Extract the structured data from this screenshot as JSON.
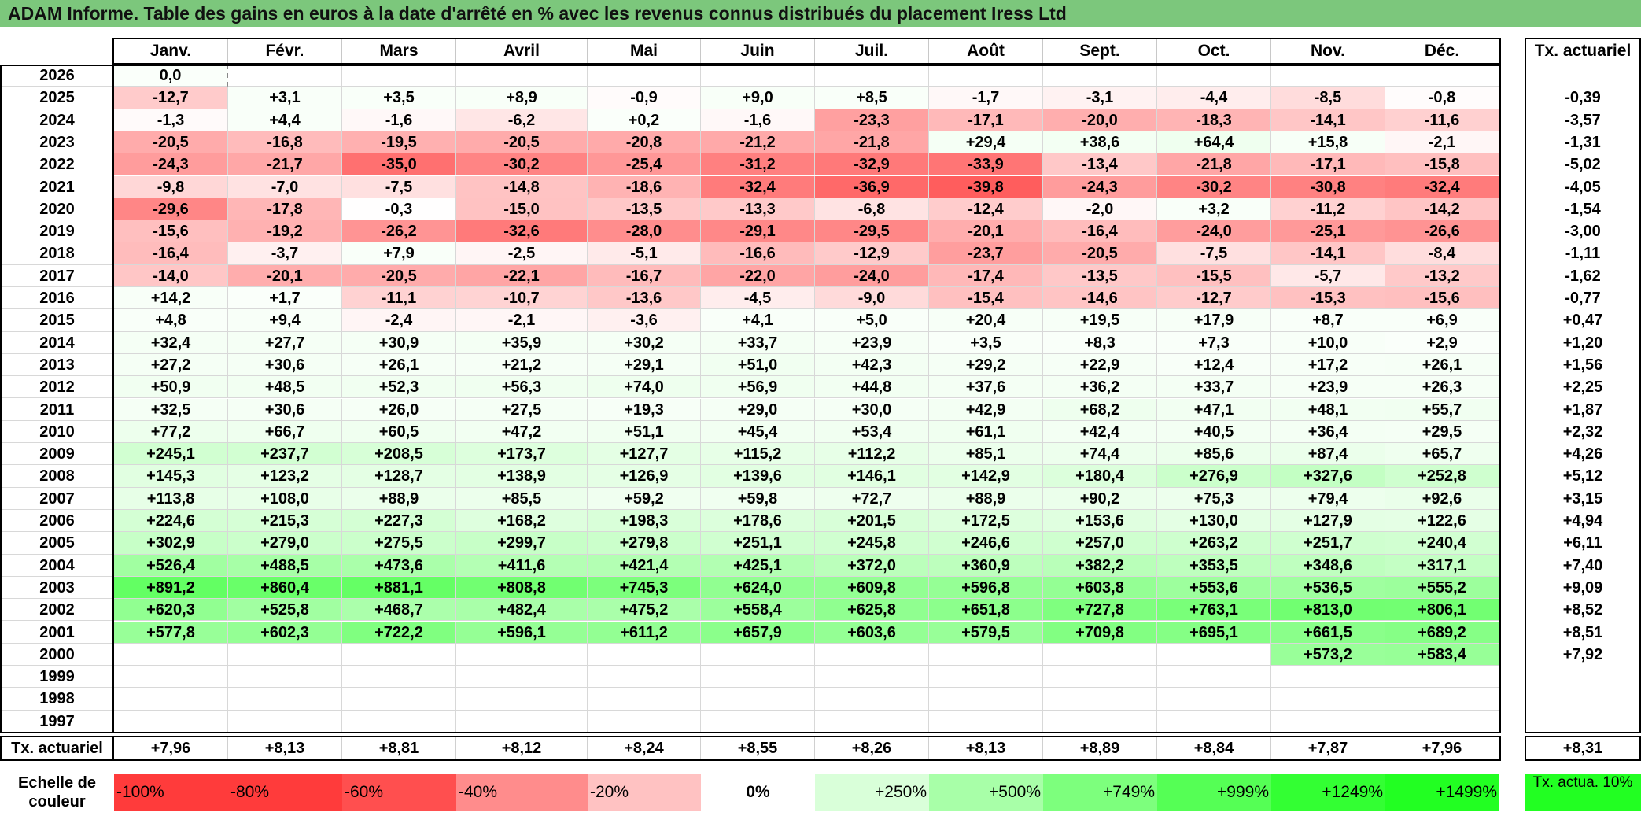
{
  "title": "ADAM Informe. Table des gains en euros à la date d'arrêté en % avec les revenus connus distribués du placement Iress Ltd",
  "months": [
    "Janv.",
    "Févr.",
    "Mars",
    "Avril",
    "Mai",
    "Juin",
    "Juil.",
    "Août",
    "Sept.",
    "Oct.",
    "Nov.",
    "Déc."
  ],
  "rate_header": "Tx. actuariel",
  "rows": [
    {
      "year": "2026",
      "values": [
        "0,0",
        "",
        "",
        "",
        "",
        "",
        "",
        "",
        "",
        "",
        "",
        ""
      ],
      "rate": ""
    },
    {
      "year": "2025",
      "values": [
        "-12,7",
        "+3,1",
        "+3,5",
        "+8,9",
        "-0,9",
        "+9,0",
        "+8,5",
        "-1,7",
        "-3,1",
        "-4,4",
        "-8,5",
        "-0,8"
      ],
      "rate": "-0,39"
    },
    {
      "year": "2024",
      "values": [
        "-1,3",
        "+4,4",
        "-1,6",
        "-6,2",
        "+0,2",
        "-1,6",
        "-23,3",
        "-17,1",
        "-20,0",
        "-18,3",
        "-14,1",
        "-11,6"
      ],
      "rate": "-3,57"
    },
    {
      "year": "2023",
      "values": [
        "-20,5",
        "-16,8",
        "-19,5",
        "-20,5",
        "-20,8",
        "-21,2",
        "-21,8",
        "+29,4",
        "+38,6",
        "+64,4",
        "+15,8",
        "-2,1"
      ],
      "rate": "-1,31"
    },
    {
      "year": "2022",
      "values": [
        "-24,3",
        "-21,7",
        "-35,0",
        "-30,2",
        "-25,4",
        "-31,2",
        "-32,9",
        "-33,9",
        "-13,4",
        "-21,8",
        "-17,1",
        "-15,8"
      ],
      "rate": "-5,02"
    },
    {
      "year": "2021",
      "values": [
        "-9,8",
        "-7,0",
        "-7,5",
        "-14,8",
        "-18,6",
        "-32,4",
        "-36,9",
        "-39,8",
        "-24,3",
        "-30,2",
        "-30,8",
        "-32,4"
      ],
      "rate": "-4,05"
    },
    {
      "year": "2020",
      "values": [
        "-29,6",
        "-17,8",
        "-0,3",
        "-15,0",
        "-13,5",
        "-13,3",
        "-6,8",
        "-12,4",
        "-2,0",
        "+3,2",
        "-11,2",
        "-14,2"
      ],
      "rate": "-1,54"
    },
    {
      "year": "2019",
      "values": [
        "-15,6",
        "-19,2",
        "-26,2",
        "-32,6",
        "-28,0",
        "-29,1",
        "-29,5",
        "-20,1",
        "-16,4",
        "-24,0",
        "-25,1",
        "-26,6"
      ],
      "rate": "-3,00"
    },
    {
      "year": "2018",
      "values": [
        "-16,4",
        "-3,7",
        "+7,9",
        "-2,5",
        "-5,1",
        "-16,6",
        "-12,9",
        "-23,7",
        "-20,5",
        "-7,5",
        "-14,1",
        "-8,4"
      ],
      "rate": "-1,11"
    },
    {
      "year": "2017",
      "values": [
        "-14,0",
        "-20,1",
        "-20,5",
        "-22,1",
        "-16,7",
        "-22,0",
        "-24,0",
        "-17,4",
        "-13,5",
        "-15,5",
        "-5,7",
        "-13,2"
      ],
      "rate": "-1,62"
    },
    {
      "year": "2016",
      "values": [
        "+14,2",
        "+1,7",
        "-11,1",
        "-10,7",
        "-13,6",
        "-4,5",
        "-9,0",
        "-15,4",
        "-14,6",
        "-12,7",
        "-15,3",
        "-15,6"
      ],
      "rate": "-0,77"
    },
    {
      "year": "2015",
      "values": [
        "+4,8",
        "+9,4",
        "-2,4",
        "-2,1",
        "-3,6",
        "+4,1",
        "+5,0",
        "+20,4",
        "+19,5",
        "+17,9",
        "+8,7",
        "+6,9"
      ],
      "rate": "+0,47"
    },
    {
      "year": "2014",
      "values": [
        "+32,4",
        "+27,7",
        "+30,9",
        "+35,9",
        "+30,2",
        "+33,7",
        "+23,9",
        "+3,5",
        "+8,3",
        "+7,3",
        "+10,0",
        "+2,9"
      ],
      "rate": "+1,20"
    },
    {
      "year": "2013",
      "values": [
        "+27,2",
        "+30,6",
        "+26,1",
        "+21,2",
        "+29,1",
        "+51,0",
        "+42,3",
        "+29,2",
        "+22,9",
        "+12,4",
        "+17,2",
        "+26,1"
      ],
      "rate": "+1,56"
    },
    {
      "year": "2012",
      "values": [
        "+50,9",
        "+48,5",
        "+52,3",
        "+56,3",
        "+74,0",
        "+56,9",
        "+44,8",
        "+37,6",
        "+36,2",
        "+33,7",
        "+23,9",
        "+26,3"
      ],
      "rate": "+2,25"
    },
    {
      "year": "2011",
      "values": [
        "+32,5",
        "+30,6",
        "+26,0",
        "+27,5",
        "+19,3",
        "+29,0",
        "+30,0",
        "+42,9",
        "+68,2",
        "+47,1",
        "+48,1",
        "+55,7"
      ],
      "rate": "+1,87"
    },
    {
      "year": "2010",
      "values": [
        "+77,2",
        "+66,7",
        "+60,5",
        "+47,2",
        "+51,1",
        "+45,4",
        "+53,4",
        "+61,1",
        "+42,4",
        "+40,5",
        "+36,4",
        "+29,5"
      ],
      "rate": "+2,32"
    },
    {
      "year": "2009",
      "values": [
        "+245,1",
        "+237,7",
        "+208,5",
        "+173,7",
        "+127,7",
        "+115,2",
        "+112,2",
        "+85,1",
        "+74,4",
        "+85,6",
        "+87,4",
        "+65,7"
      ],
      "rate": "+4,26"
    },
    {
      "year": "2008",
      "values": [
        "+145,3",
        "+123,2",
        "+128,7",
        "+138,9",
        "+126,9",
        "+139,6",
        "+146,1",
        "+142,9",
        "+180,4",
        "+276,9",
        "+327,6",
        "+252,8"
      ],
      "rate": "+5,12"
    },
    {
      "year": "2007",
      "values": [
        "+113,8",
        "+108,0",
        "+88,9",
        "+85,5",
        "+59,2",
        "+59,8",
        "+72,7",
        "+88,9",
        "+90,2",
        "+75,3",
        "+79,4",
        "+92,6"
      ],
      "rate": "+3,15"
    },
    {
      "year": "2006",
      "values": [
        "+224,6",
        "+215,3",
        "+227,3",
        "+168,2",
        "+198,3",
        "+178,6",
        "+201,5",
        "+172,5",
        "+153,6",
        "+130,0",
        "+127,9",
        "+122,6"
      ],
      "rate": "+4,94"
    },
    {
      "year": "2005",
      "values": [
        "+302,9",
        "+279,0",
        "+275,5",
        "+299,7",
        "+279,8",
        "+251,1",
        "+245,8",
        "+246,6",
        "+257,0",
        "+263,2",
        "+251,7",
        "+240,4"
      ],
      "rate": "+6,11"
    },
    {
      "year": "2004",
      "values": [
        "+526,4",
        "+488,5",
        "+473,6",
        "+411,6",
        "+421,4",
        "+425,1",
        "+372,0",
        "+360,9",
        "+382,2",
        "+353,5",
        "+348,6",
        "+317,1"
      ],
      "rate": "+7,40"
    },
    {
      "year": "2003",
      "values": [
        "+891,2",
        "+860,4",
        "+881,1",
        "+808,8",
        "+745,3",
        "+624,0",
        "+609,8",
        "+596,8",
        "+603,8",
        "+553,6",
        "+536,5",
        "+555,2"
      ],
      "rate": "+9,09"
    },
    {
      "year": "2002",
      "values": [
        "+620,3",
        "+525,8",
        "+468,7",
        "+482,4",
        "+475,2",
        "+558,4",
        "+625,8",
        "+651,8",
        "+727,8",
        "+763,1",
        "+813,0",
        "+806,1"
      ],
      "rate": "+8,52"
    },
    {
      "year": "2001",
      "values": [
        "+577,8",
        "+602,3",
        "+722,2",
        "+596,1",
        "+611,2",
        "+657,9",
        "+603,6",
        "+579,5",
        "+709,8",
        "+695,1",
        "+661,5",
        "+689,2"
      ],
      "rate": "+8,51"
    },
    {
      "year": "2000",
      "values": [
        "",
        "",
        "",
        "",
        "",
        "",
        "",
        "",
        "",
        "",
        "+573,2",
        "+583,4"
      ],
      "rate": "+7,92"
    },
    {
      "year": "1999",
      "values": [
        "",
        "",
        "",
        "",
        "",
        "",
        "",
        "",
        "",
        "",
        "",
        ""
      ],
      "rate": ""
    },
    {
      "year": "1998",
      "values": [
        "",
        "",
        "",
        "",
        "",
        "",
        "",
        "",
        "",
        "",
        "",
        ""
      ],
      "rate": ""
    },
    {
      "year": "1997",
      "values": [
        "",
        "",
        "",
        "",
        "",
        "",
        "",
        "",
        "",
        "",
        "",
        ""
      ],
      "rate": ""
    }
  ],
  "totals_label": "Tx. actuariel",
  "totals": [
    "+7,96",
    "+8,13",
    "+8,81",
    "+8,12",
    "+8,24",
    "+8,55",
    "+8,26",
    "+8,13",
    "+8,89",
    "+8,84",
    "+7,87",
    "+7,96"
  ],
  "total_rate": "+8,31",
  "scale_label": "Echelle de couleur",
  "scale": [
    {
      "label": "-100%",
      "color": "#ff3b3b",
      "align": "left"
    },
    {
      "label": "-80%",
      "color": "#ff3b3b",
      "align": "left"
    },
    {
      "label": "-60%",
      "color": "#ff4f4f",
      "align": "left"
    },
    {
      "label": "-40%",
      "color": "#ff8c8c",
      "align": "left"
    },
    {
      "label": "-20%",
      "color": "#ffc2c2",
      "align": "left"
    },
    {
      "label": "0%",
      "color": "#ffffff",
      "align": "center"
    },
    {
      "label": "+250%",
      "color": "#d9ffd9",
      "align": "right"
    },
    {
      "label": "+500%",
      "color": "#a8ffa8",
      "align": "right"
    },
    {
      "label": "+749%",
      "color": "#7dff7d",
      "align": "right"
    },
    {
      "label": "+999%",
      "color": "#55ff55",
      "align": "right"
    },
    {
      "label": "+1249%",
      "color": "#33ff33",
      "align": "right"
    },
    {
      "label": "+1499%",
      "color": "#22ff22",
      "align": "right"
    }
  ],
  "scale_rate_label": "Tx. actua. 10%",
  "colors": {
    "title_bg": "#7cc77c",
    "scale_rate_bg": "#22ff22"
  }
}
